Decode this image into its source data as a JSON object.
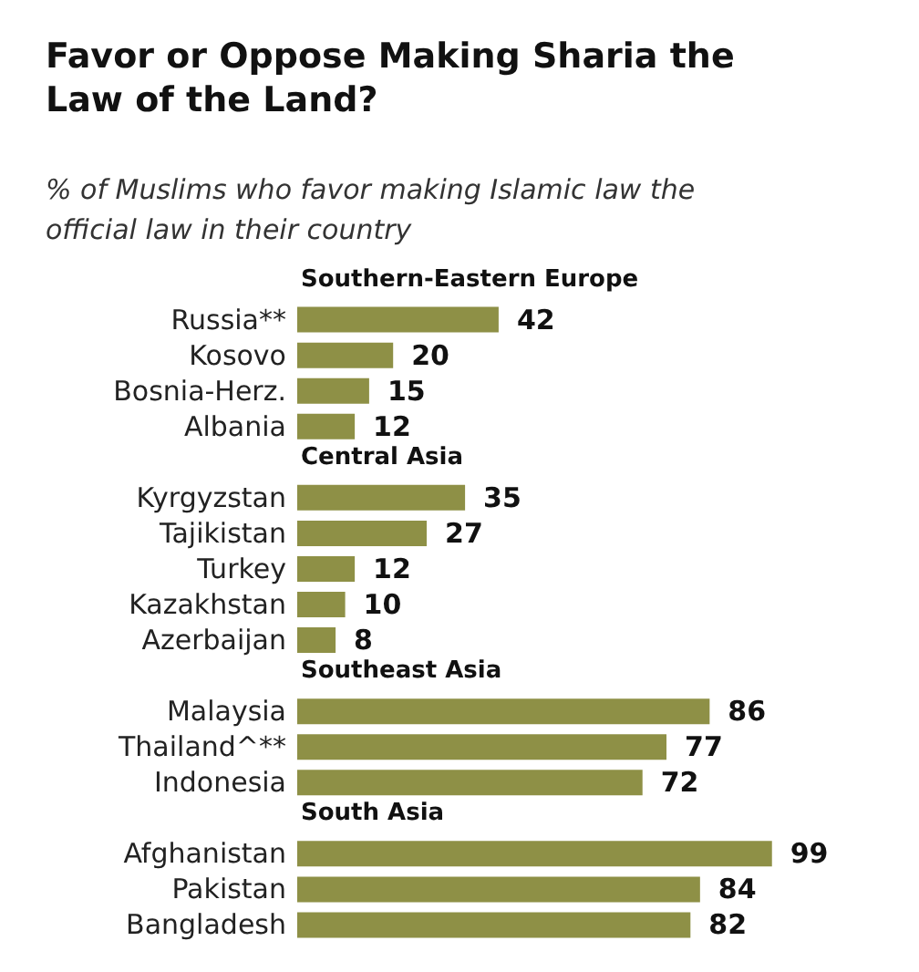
{
  "chart_data": {
    "type": "bar",
    "orientation": "horizontal",
    "title": "Favor or Oppose Making Sharia the Law of the Land?",
    "subtitle": "% of Muslims who favor making Islamic law the official law in their country",
    "categories": [
      null,
      "Russia**",
      "Kosovo",
      "Bosnia-Herz.",
      "Albania",
      null,
      "Kyrgyzstan",
      "Tajikistan",
      "Turkey",
      "Kazakhstan",
      "Azerbaijan",
      null,
      "Malaysia",
      "Thailand^**",
      "Indonesia",
      null,
      "Afghanistan",
      "Pakistan",
      "Bangladesh"
    ],
    "values": [
      null,
      42,
      20,
      15,
      12,
      null,
      35,
      27,
      12,
      10,
      8,
      null,
      86,
      77,
      72,
      null,
      99,
      84,
      82
    ],
    "color": "#8e9046",
    "data_labels": true,
    "annotations": [
      "Southern-Eastern Europe",
      "Central Asia",
      "Southeast Asia",
      "South Asia"
    ]
  }
}
